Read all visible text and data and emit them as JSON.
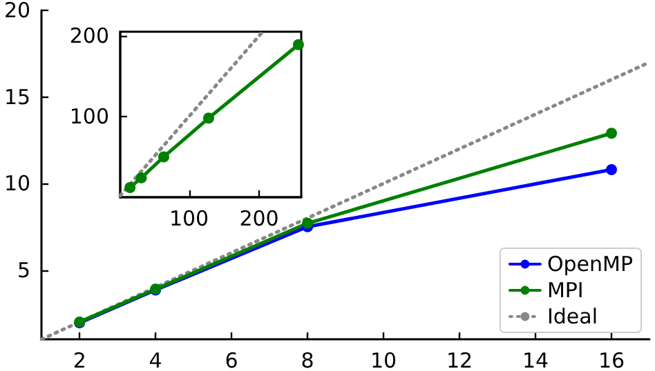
{
  "chart_data": [
    {
      "type": "line",
      "xlim": [
        1,
        17
      ],
      "xticks": [
        2,
        4,
        6,
        8,
        10,
        12,
        14,
        16
      ],
      "ylim": [
        1,
        20
      ],
      "yticks": [
        5,
        10,
        15,
        20
      ],
      "grid": false,
      "legend": "bottom right",
      "marker": "circle",
      "series": [
        {
          "name": "OpenMP",
          "color": "#0000ff",
          "x": [
            2,
            4,
            8,
            16
          ],
          "values": [
            1.95,
            3.85,
            7.5,
            10.8
          ]
        },
        {
          "name": "MPI",
          "color": "#008000",
          "x": [
            2,
            4,
            8,
            16
          ],
          "values": [
            2,
            3.9,
            7.7,
            12.9
          ]
        },
        {
          "name": "Ideal",
          "color": "#888888",
          "x": [
            1,
            17
          ],
          "values": [
            1,
            17
          ],
          "marker": "none",
          "line_style": "dotted"
        }
      ]
    },
    {
      "type": "line",
      "xlim": [
        2,
        260
      ],
      "xticks": [
        100,
        200
      ],
      "ylim": [
        0,
        205
      ],
      "yticks": [
        100,
        200
      ],
      "grid": false,
      "legend": false,
      "marker": "circle",
      "series": [
        {
          "color": "#008000",
          "x": [
            16,
            32,
            64,
            128,
            256
          ],
          "values": [
            12,
            24,
            50,
            98,
            189
          ]
        },
        {
          "color": "#888888",
          "x": [
            2,
            205
          ],
          "values": [
            2,
            205
          ],
          "marker": "none",
          "line_style": "dotted"
        }
      ]
    }
  ]
}
